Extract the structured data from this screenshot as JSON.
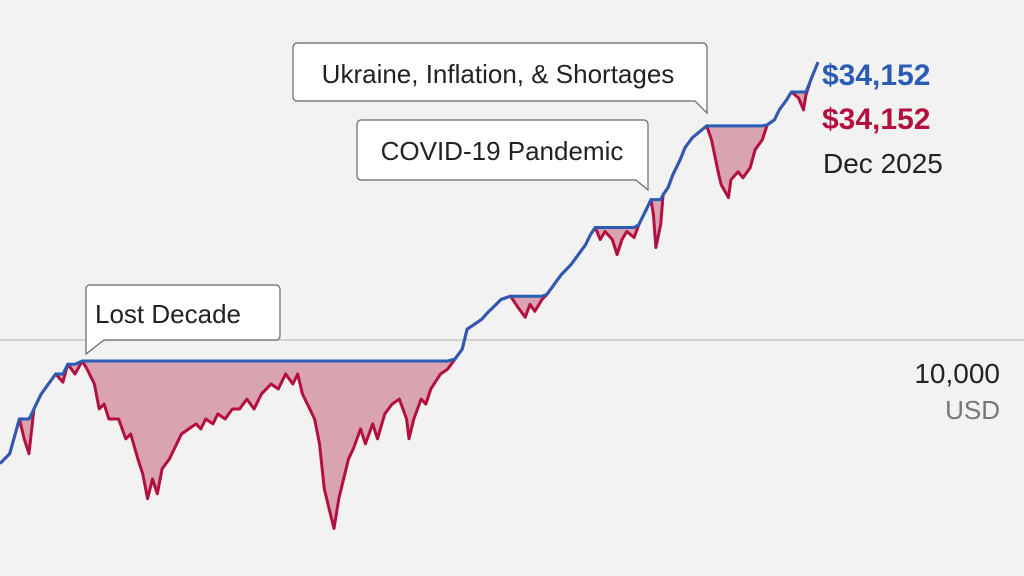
{
  "chart_data": {
    "type": "line",
    "yscale": "log",
    "ylim": [
      3500,
      45000
    ],
    "xlim": [
      "1997-10",
      "2025-12"
    ],
    "grid": {
      "y_lines": [
        10000
      ]
    },
    "y_tick_label": "10,000",
    "y_unit_label": "USD",
    "colors": {
      "peak": "#2a5bb5",
      "value": "#b3103f",
      "drawdown_fill": "#d9a3b1",
      "background": "#f2f2f2"
    },
    "series_description_peak": "running maximum",
    "points": [
      [
        "1997-10",
        5760
      ],
      [
        "1998-02",
        6020
      ],
      [
        "1998-06",
        7020
      ],
      [
        "1998-08",
        6430
      ],
      [
        "1998-10",
        6020
      ],
      [
        "1998-12",
        7340
      ],
      [
        "1999-03",
        7840
      ],
      [
        "1999-06",
        8200
      ],
      [
        "1999-09",
        8570
      ],
      [
        "1999-12",
        8270
      ],
      [
        "2000-02",
        8950
      ],
      [
        "2000-05",
        8570
      ],
      [
        "2000-08",
        9080
      ],
      [
        "2000-10",
        8760
      ],
      [
        "2001-01",
        8200
      ],
      [
        "2001-03",
        7340
      ],
      [
        "2001-05",
        7500
      ],
      [
        "2001-07",
        7020
      ],
      [
        "2001-11",
        7020
      ],
      [
        "2002-02",
        6430
      ],
      [
        "2002-04",
        6570
      ],
      [
        "2002-07",
        5880
      ],
      [
        "2002-09",
        5500
      ],
      [
        "2002-11",
        4930
      ],
      [
        "2003-01",
        5380
      ],
      [
        "2003-03",
        5040
      ],
      [
        "2003-05",
        5630
      ],
      [
        "2003-08",
        5880
      ],
      [
        "2003-11",
        6290
      ],
      [
        "2004-01",
        6570
      ],
      [
        "2004-04",
        6720
      ],
      [
        "2004-07",
        6870
      ],
      [
        "2004-09",
        6720
      ],
      [
        "2004-11",
        7020
      ],
      [
        "2005-02",
        6870
      ],
      [
        "2005-04",
        7180
      ],
      [
        "2005-07",
        7020
      ],
      [
        "2005-10",
        7340
      ],
      [
        "2006-01",
        7340
      ],
      [
        "2006-04",
        7670
      ],
      [
        "2006-07",
        7340
      ],
      [
        "2006-10",
        7840
      ],
      [
        "2007-02",
        8200
      ],
      [
        "2007-05",
        8020
      ],
      [
        "2007-08",
        8570
      ],
      [
        "2007-11",
        8200
      ],
      [
        "2008-01",
        8570
      ],
      [
        "2008-03",
        7840
      ],
      [
        "2008-06",
        7340
      ],
      [
        "2008-08",
        7020
      ],
      [
        "2008-10",
        6290
      ],
      [
        "2008-12",
        5150
      ],
      [
        "2009-02",
        4720
      ],
      [
        "2009-04",
        4320
      ],
      [
        "2009-06",
        4930
      ],
      [
        "2009-07",
        5150
      ],
      [
        "2009-10",
        5880
      ],
      [
        "2009-12",
        6150
      ],
      [
        "2010-03",
        6720
      ],
      [
        "2010-05",
        6290
      ],
      [
        "2010-08",
        6870
      ],
      [
        "2010-10",
        6430
      ],
      [
        "2011-01",
        7180
      ],
      [
        "2011-04",
        7500
      ],
      [
        "2011-07",
        7670
      ],
      [
        "2011-10",
        7020
      ],
      [
        "2011-11",
        6430
      ],
      [
        "2012-01",
        7020
      ],
      [
        "2012-04",
        7670
      ],
      [
        "2012-06",
        7500
      ],
      [
        "2012-08",
        8020
      ],
      [
        "2012-12",
        8570
      ],
      [
        "2013-03",
        8760
      ],
      [
        "2013-06",
        9160
      ],
      [
        "2013-09",
        9570
      ],
      [
        "2013-11",
        10450
      ],
      [
        "2014-02",
        10680
      ],
      [
        "2014-05",
        10920
      ],
      [
        "2014-08",
        11320
      ],
      [
        "2014-11",
        11670
      ],
      [
        "2015-01",
        11930
      ],
      [
        "2015-05",
        12100
      ],
      [
        "2015-08",
        11520
      ],
      [
        "2015-11",
        11020
      ],
      [
        "2016-01",
        11670
      ],
      [
        "2016-03",
        11320
      ],
      [
        "2016-06",
        11930
      ],
      [
        "2016-08",
        12200
      ],
      [
        "2016-11",
        12750
      ],
      [
        "2017-02",
        13330
      ],
      [
        "2017-06",
        13930
      ],
      [
        "2017-09",
        14560
      ],
      [
        "2017-12",
        15220
      ],
      [
        "2018-02",
        15900
      ],
      [
        "2018-04",
        16410
      ],
      [
        "2018-06",
        15560
      ],
      [
        "2018-08",
        16120
      ],
      [
        "2018-11",
        15560
      ],
      [
        "2019-01",
        14560
      ],
      [
        "2019-03",
        15560
      ],
      [
        "2019-05",
        16120
      ],
      [
        "2019-08",
        15700
      ],
      [
        "2019-10",
        16630
      ],
      [
        "2020-01",
        17760
      ],
      [
        "2020-03",
        18570
      ],
      [
        "2020-04",
        17380
      ],
      [
        "2020-05",
        15020
      ],
      [
        "2020-07",
        16630
      ],
      [
        "2020-08",
        18980
      ],
      [
        "2020-10",
        19570
      ],
      [
        "2020-12",
        20730
      ],
      [
        "2021-03",
        22160
      ],
      [
        "2021-05",
        23360
      ],
      [
        "2021-08",
        24420
      ],
      [
        "2021-11",
        25070
      ],
      [
        "2022-02",
        25750
      ],
      [
        "2022-04",
        24210
      ],
      [
        "2022-07",
        20730
      ],
      [
        "2022-08",
        19840
      ],
      [
        "2022-11",
        18740
      ],
      [
        "2022-12",
        20280
      ],
      [
        "2023-03",
        21010
      ],
      [
        "2023-05",
        20460
      ],
      [
        "2023-08",
        21390
      ],
      [
        "2023-10",
        23160
      ],
      [
        "2024-01",
        24210
      ],
      [
        "2024-03",
        25870
      ],
      [
        "2024-06",
        26450
      ],
      [
        "2024-08",
        27640
      ],
      [
        "2024-11",
        28880
      ],
      [
        "2025-01",
        29920
      ],
      [
        "2025-04",
        29140
      ],
      [
        "2025-06",
        27640
      ],
      [
        "2025-07",
        29530
      ],
      [
        "2025-09",
        31550
      ],
      [
        "2025-12",
        34152
      ]
    ],
    "annotations": [
      {
        "text": "Lost Decade",
        "date": "2000-08"
      },
      {
        "text": "COVID-19 Pandemic",
        "date": "2020-03"
      },
      {
        "text": "Ukraine, Inflation, & Shortages",
        "date": "2022-02"
      }
    ],
    "end_labels": {
      "peak_value": "$34,152",
      "value": "$34,152",
      "date": "Dec 2025"
    }
  }
}
